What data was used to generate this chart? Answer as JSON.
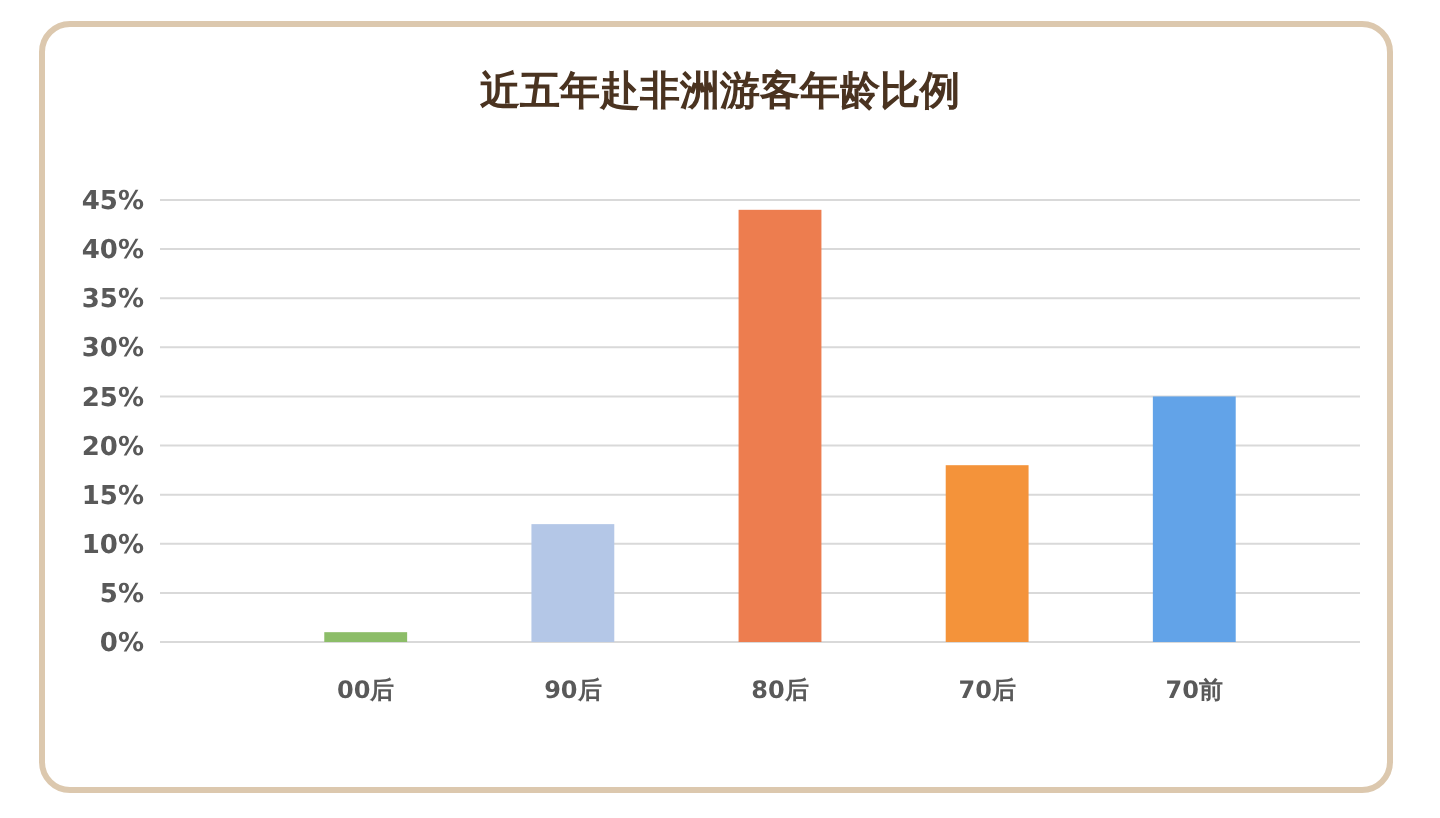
{
  "chart_data": {
    "type": "bar",
    "title": "近五年赴非洲游客年龄比例",
    "categories": [
      "00后",
      "90后",
      "80后",
      "70后",
      "70前"
    ],
    "values": [
      1,
      12,
      44,
      18,
      25
    ],
    "colors": [
      "#8cbd68",
      "#b4c7e7",
      "#ed7d4f",
      "#f4933a",
      "#62a3e8"
    ],
    "ylim": [
      0,
      45
    ],
    "yticks": [
      {
        "value": 0,
        "label": "0%"
      },
      {
        "value": 5,
        "label": "5%"
      },
      {
        "value": 10,
        "label": "10%"
      },
      {
        "value": 15,
        "label": "15%"
      },
      {
        "value": 20,
        "label": "20%"
      },
      {
        "value": 25,
        "label": "25%"
      },
      {
        "value": 30,
        "label": "30%"
      },
      {
        "value": 35,
        "label": "35%"
      },
      {
        "value": 40,
        "label": "40%"
      },
      {
        "value": 45,
        "label": "45%"
      }
    ],
    "grid": "y"
  }
}
